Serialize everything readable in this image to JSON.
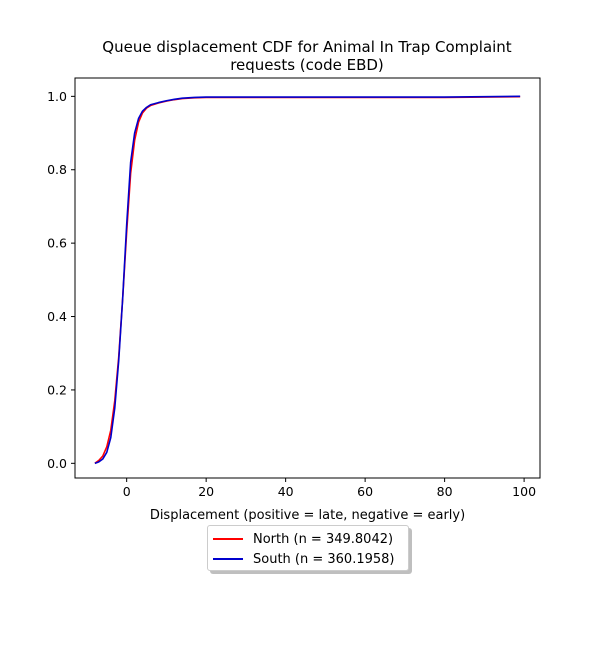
{
  "chart_data": {
    "type": "line",
    "title_lines": [
      "Queue displacement CDF for Animal In Trap Complaint",
      "requests (code EBD)"
    ],
    "xlabel": "Displacement (positive = late, negative = early)",
    "ylabel": "",
    "xlim": [
      -13,
      104
    ],
    "ylim": [
      -0.04,
      1.05
    ],
    "xticks": [
      0,
      20,
      40,
      60,
      80,
      100
    ],
    "yticks": [
      0.0,
      0.2,
      0.4,
      0.6,
      0.8,
      1.0
    ],
    "xtick_labels": [
      "0",
      "20",
      "40",
      "60",
      "80",
      "100"
    ],
    "ytick_labels": [
      "0.0",
      "0.2",
      "0.4",
      "0.6",
      "0.8",
      "1.0"
    ],
    "grid": false,
    "legend_placement": "below",
    "series": [
      {
        "name": "North (n = 349.8042)",
        "color": "#ff0000",
        "x": [
          -8,
          -7,
          -6,
          -5,
          -4,
          -3,
          -2,
          -1,
          0,
          1,
          2,
          3,
          4,
          5,
          6,
          8,
          10,
          12,
          14,
          17,
          20,
          30,
          50,
          80,
          90,
          99
        ],
        "y": [
          0.0,
          0.008,
          0.02,
          0.045,
          0.09,
          0.17,
          0.29,
          0.45,
          0.63,
          0.79,
          0.88,
          0.93,
          0.955,
          0.968,
          0.975,
          0.982,
          0.987,
          0.991,
          0.994,
          0.996,
          0.997,
          0.997,
          0.997,
          0.997,
          0.998,
          0.999
        ]
      },
      {
        "name": "South (n = 360.1958)",
        "color": "#0000cd",
        "x": [
          -8,
          -7,
          -6,
          -5,
          -4,
          -3,
          -2,
          -1,
          0,
          1,
          2,
          3,
          4,
          5,
          6,
          8,
          10,
          12,
          14,
          17,
          20,
          30,
          50,
          80,
          90,
          99
        ],
        "y": [
          0.0,
          0.004,
          0.012,
          0.03,
          0.07,
          0.15,
          0.28,
          0.45,
          0.65,
          0.82,
          0.9,
          0.94,
          0.96,
          0.97,
          0.977,
          0.983,
          0.988,
          0.992,
          0.995,
          0.997,
          0.998,
          0.998,
          0.998,
          0.998,
          0.999,
          1.0
        ]
      }
    ]
  }
}
